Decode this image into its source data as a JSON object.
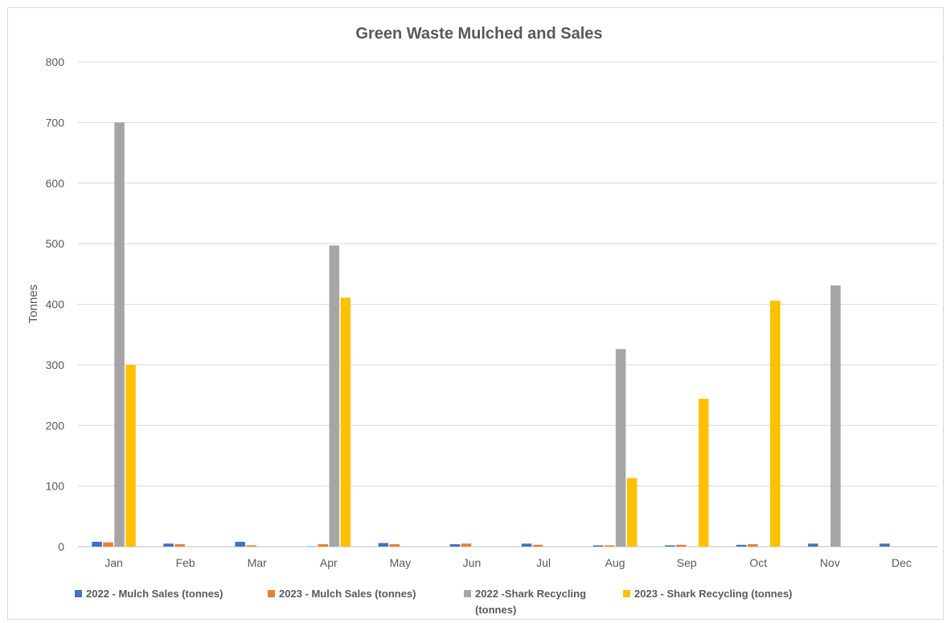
{
  "chart_data": {
    "type": "bar",
    "title": "Green Waste Mulched and Sales",
    "xlabel": "",
    "ylabel": "Tonnes",
    "ylim": [
      0,
      800
    ],
    "yticks": [
      "0",
      "100",
      "200",
      "300",
      "400",
      "500",
      "600",
      "700",
      "800"
    ],
    "grid": true,
    "legend_position": "bottom",
    "categories": [
      "Jan",
      "Feb",
      "Mar",
      "Apr",
      "May",
      "Jun",
      "Jul",
      "Aug",
      "Sep",
      "Oct",
      "Nov",
      "Dec"
    ],
    "series": [
      {
        "name": "2022 - Mulch Sales (tonnes)",
        "legend_lines": [
          "2022 - Mulch Sales (tonnes)"
        ],
        "color": "#4472c4",
        "values": [
          8,
          5,
          8,
          0.5,
          6,
          4,
          5,
          2,
          2,
          3,
          5,
          5
        ]
      },
      {
        "name": "2023 - Mulch Sales (tonnes)",
        "legend_lines": [
          "2023 - Mulch Sales (tonnes)"
        ],
        "color": "#ed7d31",
        "values": [
          7,
          4,
          2,
          4,
          4,
          5,
          3,
          2,
          3,
          4,
          0,
          0
        ]
      },
      {
        "name": "2022 -Shark Recycling (tonnes)",
        "legend_lines": [
          "2022 -Shark Recycling",
          "(tonnes)"
        ],
        "color": "#a5a5a5",
        "values": [
          700,
          0,
          0,
          497,
          0,
          0,
          0,
          326,
          0,
          0,
          431,
          0
        ]
      },
      {
        "name": "2023 - Shark Recycling (tonnes)",
        "legend_lines": [
          "2023 - Shark Recycling (tonnes)"
        ],
        "color": "#ffc000",
        "values": [
          300,
          0,
          0,
          411,
          0,
          0,
          0,
          113,
          244,
          406,
          0,
          0
        ]
      }
    ]
  }
}
